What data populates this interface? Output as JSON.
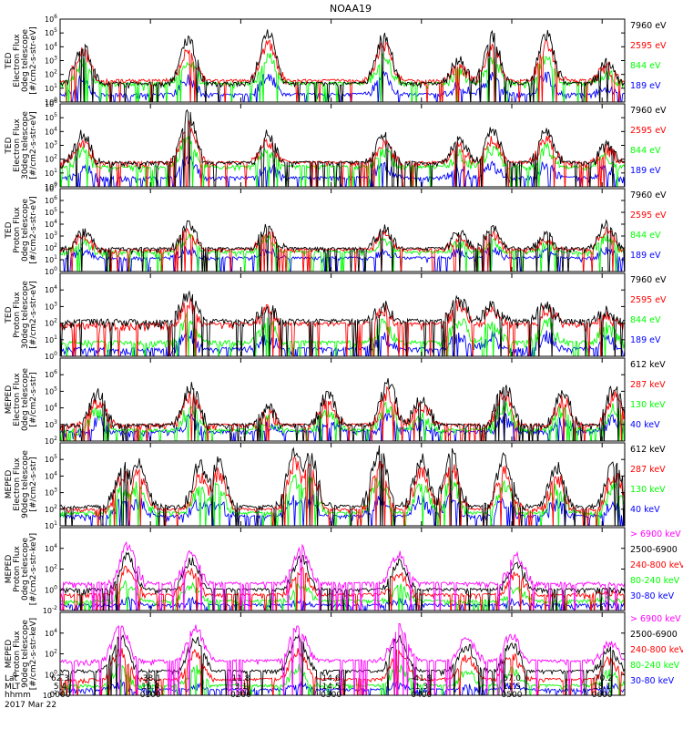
{
  "title": "NOAA19",
  "date_label": "2017 Mar 22",
  "footer": {
    "row_labels": [
      "Lat",
      "MLT",
      "hhmm"
    ],
    "columns": [
      {
        "lat": "62.3",
        "mlt": "5.4",
        "hhmm": "0000"
      },
      {
        "lat": "-38.1",
        "mlt": "16.4",
        "hhmm": "0100"
      },
      {
        "lat": "11.8",
        "mlt": "3.1",
        "hhmm": "0200"
      },
      {
        "lat": "14.6",
        "mlt": "14.5",
        "hhmm": "0300"
      },
      {
        "lat": "-41.9",
        "mlt": "1.3",
        "hhmm": "0400"
      },
      {
        "lat": "67.0",
        "mlt": "11.5",
        "hhmm": "0500"
      },
      {
        "lat": "-70.2",
        "mlt": "18.1",
        "hhmm": "0600"
      }
    ]
  },
  "colors": {
    "black": "#000000",
    "red": "#ff0000",
    "green": "#00ff00",
    "blue": "#0000ff",
    "magenta": "#ff00ff"
  },
  "chart_data": [
    {
      "type": "line",
      "instrument": "TED",
      "ylabel": [
        "TED",
        "Electron Flux",
        "0deg telescope",
        "[#/cm2-s-str-eV]"
      ],
      "ylim_log10": [
        0,
        6
      ],
      "yticks": [
        {
          "e": "0",
          "v": 0
        },
        {
          "e": "1",
          "v": 1
        },
        {
          "e": "2",
          "v": 2
        },
        {
          "e": "3",
          "v": 3
        },
        {
          "e": "4",
          "v": 4
        },
        {
          "e": "5",
          "v": 5
        },
        {
          "e": "6",
          "v": 6
        }
      ],
      "series": [
        {
          "name": "7960 eV",
          "color": "#000000"
        },
        {
          "name": "2595 eV",
          "color": "#ff0000"
        },
        {
          "name": "844 eV",
          "color": "#00ff00"
        },
        {
          "name": "189 eV",
          "color": "#0000ff"
        }
      ],
      "peaks_hhmm": [
        [
          "0015",
          4.2,
          3.2
        ],
        [
          "0125",
          4.5,
          3.8
        ],
        [
          "0218",
          5.0,
          4.2
        ],
        [
          "0335",
          4.8,
          3.8
        ],
        [
          "0425",
          3.0,
          2.4
        ],
        [
          "0447",
          4.7,
          4.0
        ],
        [
          "0523",
          4.9,
          4.0
        ],
        [
          "0603",
          2.8,
          2.3
        ]
      ],
      "background_log10": [
        1.0,
        1.2,
        1.0,
        0.2
      ]
    },
    {
      "type": "line",
      "instrument": "TED",
      "ylabel": [
        "TED",
        "Electron Flux",
        "30deg telescope",
        "[#/cm2-s-str-eV]"
      ],
      "ylim_log10": [
        0,
        6
      ],
      "yticks": [
        {
          "e": "0",
          "v": 0
        },
        {
          "e": "1",
          "v": 1
        },
        {
          "e": "2",
          "v": 2
        },
        {
          "e": "3",
          "v": 3
        },
        {
          "e": "4",
          "v": 4
        },
        {
          "e": "5",
          "v": 5
        },
        {
          "e": "6",
          "v": 6
        }
      ],
      "series": [
        {
          "name": "7960 eV",
          "color": "#000000"
        },
        {
          "name": "2595 eV",
          "color": "#ff0000"
        },
        {
          "name": "844 eV",
          "color": "#00ff00"
        },
        {
          "name": "189 eV",
          "color": "#0000ff"
        }
      ],
      "peaks_hhmm": [
        [
          "0015",
          3.8,
          3.2
        ],
        [
          "0125",
          5.2,
          3.8
        ],
        [
          "0218",
          3.8,
          4.2
        ],
        [
          "0335",
          3.6,
          3.8
        ],
        [
          "0425",
          3.3,
          2.4
        ],
        [
          "0447",
          4.0,
          4.0
        ],
        [
          "0523",
          4.0,
          4.0
        ],
        [
          "0603",
          3.0,
          2.3
        ]
      ],
      "background_log10": [
        1.4,
        1.4,
        1.1,
        0.3
      ]
    },
    {
      "type": "line",
      "instrument": "TED",
      "ylabel": [
        "TED",
        "Proton Flux",
        "0deg telescope",
        "[#/cm2-s-str-eV]"
      ],
      "ylim_log10": [
        0,
        7
      ],
      "yticks": [
        {
          "e": "0",
          "v": 0
        },
        {
          "e": "1",
          "v": 1
        },
        {
          "e": "2",
          "v": 2
        },
        {
          "e": "3",
          "v": 3
        },
        {
          "e": "4",
          "v": 4
        },
        {
          "e": "5",
          "v": 5
        },
        {
          "e": "6",
          "v": 6
        },
        {
          "e": "7",
          "v": 7
        }
      ],
      "series": [
        {
          "name": "7960 eV",
          "color": "#000000"
        },
        {
          "name": "2595 eV",
          "color": "#ff0000"
        },
        {
          "name": "844 eV",
          "color": "#00ff00"
        },
        {
          "name": "189 eV",
          "color": "#0000ff"
        }
      ],
      "peaks_hhmm": [
        [
          "0015",
          3.4,
          3.2
        ],
        [
          "0125",
          4.0,
          3.8
        ],
        [
          "0218",
          3.8,
          4.2
        ],
        [
          "0335",
          3.6,
          3.8
        ],
        [
          "0425",
          3.2,
          2.4
        ],
        [
          "0447",
          3.6,
          4.0
        ],
        [
          "0523",
          3.0,
          4.0
        ],
        [
          "0603",
          4.0,
          3.0
        ]
      ],
      "background_log10": [
        1.6,
        1.5,
        1.3,
        0.8
      ]
    },
    {
      "type": "line",
      "instrument": "TED",
      "ylabel": [
        "TED",
        "Proton Flux",
        "30deg telescope",
        "[#/cm2-s-str-eV]"
      ],
      "ylim_log10": [
        0,
        5
      ],
      "yticks": [
        {
          "e": "0",
          "v": 0
        },
        {
          "e": "1",
          "v": 1
        },
        {
          "e": "2",
          "v": 2
        },
        {
          "e": "3",
          "v": 3
        },
        {
          "e": "4",
          "v": 4
        }
      ],
      "series": [
        {
          "name": "7960 eV",
          "color": "#000000"
        },
        {
          "name": "2595 eV",
          "color": "#ff0000"
        },
        {
          "name": "844 eV",
          "color": "#00ff00"
        },
        {
          "name": "189 eV",
          "color": "#0000ff"
        }
      ],
      "peaks_hhmm": [
        [
          "0125",
          3.6,
          3.5
        ],
        [
          "0218",
          3.0,
          3.8
        ],
        [
          "0335",
          3.0,
          3.5
        ],
        [
          "0425",
          3.4,
          2.4
        ],
        [
          "0447",
          3.0,
          3.5
        ],
        [
          "0523",
          3.2,
          3.5
        ],
        [
          "0603",
          2.6,
          2.3
        ]
      ],
      "background_log10": [
        1.8,
        1.6,
        0.5,
        0.1
      ]
    },
    {
      "type": "line",
      "instrument": "MEPED",
      "ylabel": [
        "MEPED",
        "Electron Flux",
        "0deg telescope",
        "[#/cm2-s-str]"
      ],
      "ylim_log10": [
        2,
        7
      ],
      "yticks": [
        {
          "e": "2",
          "v": 2
        },
        {
          "e": "3",
          "v": 3
        },
        {
          "e": "4",
          "v": 4
        },
        {
          "e": "5",
          "v": 5
        },
        {
          "e": "6",
          "v": 6
        }
      ],
      "series": [
        {
          "name": "612 keV",
          "color": "#000000"
        },
        {
          "name": "287 keV",
          "color": "#ff0000"
        },
        {
          "name": "130 keV",
          "color": "#00ff00"
        },
        {
          "name": "40 keV",
          "color": "#0000ff"
        }
      ],
      "peaks_hhmm": [
        [
          "0025",
          4.8,
          2.0
        ],
        [
          "0127",
          5.3,
          2.0
        ],
        [
          "0218",
          4.0,
          2.0
        ],
        [
          "0258",
          4.8,
          3.0
        ],
        [
          "0338",
          5.5,
          2.0
        ],
        [
          "0400",
          4.6,
          3.0
        ],
        [
          "0455",
          5.4,
          3.5
        ],
        [
          "0534",
          5.0,
          3.0
        ],
        [
          "0608",
          5.2,
          3.2
        ]
      ],
      "background_log10": [
        2.6,
        2.6,
        2.3,
        2.2
      ]
    },
    {
      "type": "line",
      "instrument": "MEPED",
      "ylabel": [
        "MEPED",
        "Electron Flux",
        "90deg telescope",
        "[#/cm2-s-str]"
      ],
      "ylim_log10": [
        1,
        6
      ],
      "yticks": [
        {
          "e": "1",
          "v": 1
        },
        {
          "e": "2",
          "v": 2
        },
        {
          "e": "3",
          "v": 3
        },
        {
          "e": "4",
          "v": 4
        },
        {
          "e": "5",
          "v": 5
        }
      ],
      "series": [
        {
          "name": "612 keV",
          "color": "#000000"
        },
        {
          "name": "287 keV",
          "color": "#ff0000"
        },
        {
          "name": "130 keV",
          "color": "#00ff00"
        },
        {
          "name": "40 keV",
          "color": "#0000ff"
        }
      ],
      "peaks_hhmm": [
        [
          "0042",
          4.7,
          3.0
        ],
        [
          "0052",
          4.8,
          2.6
        ],
        [
          "0133",
          4.7,
          3.0
        ],
        [
          "0145",
          4.8,
          2.5
        ],
        [
          "0236",
          5.6,
          3.0
        ],
        [
          "0246",
          5.2,
          2.6
        ],
        [
          "0332",
          5.5,
          3.0
        ],
        [
          "0400",
          5.0,
          3.0
        ],
        [
          "0420",
          5.3,
          2.6
        ],
        [
          "0455",
          5.0,
          2.6
        ],
        [
          "0530",
          4.5,
          2.5
        ],
        [
          "0608",
          4.8,
          2.6
        ]
      ],
      "background_log10": [
        1.8,
        1.6,
        1.4,
        1.2
      ]
    },
    {
      "type": "line",
      "instrument": "MEPED",
      "ylabel": [
        "MEPED",
        "Proton Flux",
        "0deg telescope",
        "[#/cm2-s-str-keV]"
      ],
      "ylim_log10": [
        -2,
        6
      ],
      "yticks": [
        {
          "e": "-2",
          "v": -2
        },
        {
          "e": "0",
          "v": 0
        },
        {
          "e": "2",
          "v": 2
        },
        {
          "e": "4",
          "v": 4
        }
      ],
      "series": [
        {
          "name": "> 6900 keV",
          "color": "#ff00ff"
        },
        {
          "name": "2500-6900",
          "color": "#000000"
        },
        {
          "name": "240-800 keV",
          "color": "#ff0000"
        },
        {
          "name": "80-240 keV",
          "color": "#00ff00"
        },
        {
          "name": "30-80 keV",
          "color": "#0000ff"
        }
      ],
      "peaks_hhmm": [
        [
          "0045",
          4.2,
          2.5
        ],
        [
          "0127",
          3.6,
          2.0
        ],
        [
          "0240",
          4.0,
          2.5
        ],
        [
          "0345",
          3.4,
          2.5
        ],
        [
          "0503",
          3.2,
          2.5
        ],
        [
          "0603",
          0.0,
          2.3
        ]
      ],
      "background_log10": [
        0.3,
        -0.3,
        -0.8,
        -1.4,
        -1.8
      ]
    },
    {
      "type": "line",
      "instrument": "MEPED",
      "ylabel": [
        "MEPED",
        "Proton Flux",
        "90deg telescope",
        "[#/cm2-s-str-keV]"
      ],
      "ylim_log10": [
        -2,
        6
      ],
      "yticks": [
        {
          "e": "-2",
          "v": -2
        },
        {
          "e": "0",
          "v": 0
        },
        {
          "e": "2",
          "v": 2
        },
        {
          "e": "4",
          "v": 4
        }
      ],
      "series": [
        {
          "name": "> 6900 keV",
          "color": "#ff00ff"
        },
        {
          "name": "2500-6900",
          "color": "#000000"
        },
        {
          "name": "240-800 keV",
          "color": "#ff0000"
        },
        {
          "name": "80-240 keV",
          "color": "#00ff00"
        },
        {
          "name": "30-80 keV",
          "color": "#0000ff"
        }
      ],
      "peaks_hhmm": [
        [
          "0040",
          4.6,
          3.0
        ],
        [
          "0130",
          4.4,
          3.0
        ],
        [
          "0238",
          4.6,
          3.0
        ],
        [
          "0345",
          4.5,
          3.0
        ],
        [
          "0430",
          3.5,
          2.5
        ],
        [
          "0500",
          3.8,
          2.5
        ],
        [
          "0605",
          3.0,
          2.3
        ]
      ],
      "background_log10": [
        1.0,
        0.0,
        -0.8,
        -1.4,
        -1.8
      ]
    }
  ]
}
